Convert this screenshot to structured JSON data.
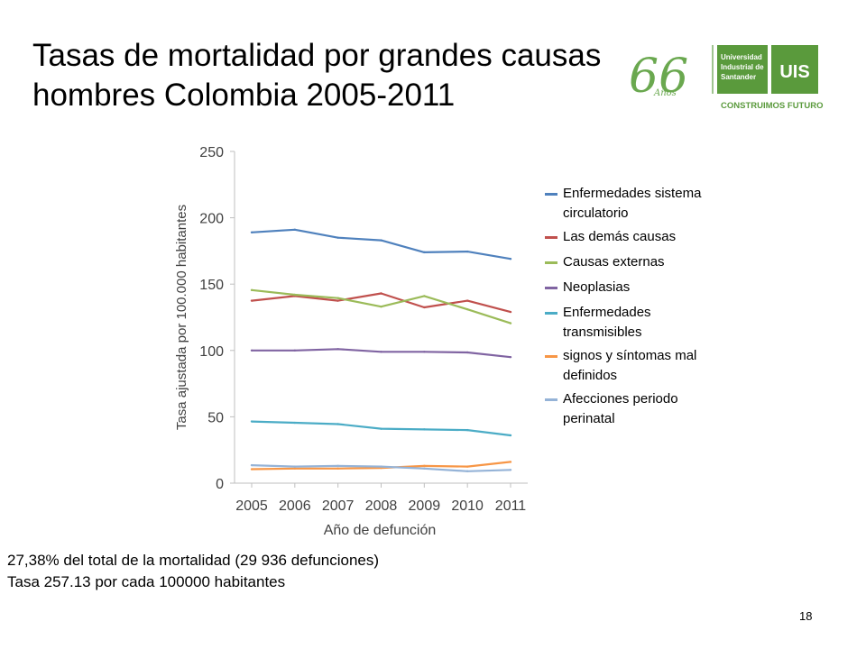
{
  "title": {
    "line1": "Tasas de mortalidad por grandes causas",
    "line2": "hombres Colombia  2005-2011"
  },
  "logo": {
    "anniversary": "66",
    "anniversary_word": "Años",
    "university_line1": "Universidad",
    "university_line2": "Industrial de",
    "university_line3": "Santander",
    "initials": "UIS",
    "slogan": "CONSTRUIMOS FUTURO",
    "green": "#5a9a3c"
  },
  "notes": {
    "line1": "27,38% del total de la mortalidad (29 936 defunciones)",
    "line2": "Tasa 257.13 por cada 100000 habitantes"
  },
  "page_number": "18",
  "chart_data": {
    "type": "line",
    "title": "",
    "xlabel": "Año de defunción",
    "ylabel": "Tasa ajustada por 100.000 habitantes",
    "x": [
      "2005",
      "2006",
      "2007",
      "2008",
      "2009",
      "2010",
      "2011"
    ],
    "ylim": [
      0,
      250
    ],
    "yticks": [
      "0",
      "50",
      "100",
      "150",
      "200",
      "250"
    ],
    "grid": false,
    "legend_position": "right",
    "series": [
      {
        "name": "Enfermedades sistema circulatorio",
        "legend_line1": "Enfermedades sistema",
        "legend_line2": "circulatorio",
        "color": "#4f81bd",
        "values": [
          189,
          191,
          185,
          183,
          174,
          174.5,
          169
        ]
      },
      {
        "name": "Las demás causas",
        "legend_line1": "Las demás causas",
        "legend_line2": "",
        "color": "#c0504d",
        "values": [
          137.5,
          141,
          137.5,
          143,
          132.5,
          137.5,
          129
        ]
      },
      {
        "name": "Causas externas",
        "legend_line1": "Causas externas",
        "legend_line2": "",
        "color": "#9bbb59",
        "values": [
          145.5,
          142,
          139.5,
          133,
          141,
          131,
          120.5
        ]
      },
      {
        "name": "Neoplasias",
        "legend_line1": "Neoplasias",
        "legend_line2": "",
        "color": "#8064a2",
        "values": [
          100,
          100,
          101,
          99,
          99,
          98.5,
          95
        ]
      },
      {
        "name": "Enfermedades transmisibles",
        "legend_line1": "Enfermedades",
        "legend_line2": "transmisibles",
        "color": "#4bacc6",
        "values": [
          46.5,
          45.5,
          44.5,
          41,
          40.5,
          40,
          36
        ]
      },
      {
        "name": "signos y síntomas mal definidos",
        "legend_line1": "signos y síntomas mal",
        "legend_line2": "definidos",
        "color": "#f79646",
        "values": [
          10.5,
          11,
          11,
          11.5,
          13,
          12.5,
          16
        ]
      },
      {
        "name": "Afecciones periodo perinatal",
        "legend_line1": "Afecciones periodo",
        "legend_line2": "perinatal",
        "color": "#95b3d7",
        "values": [
          13.5,
          12.5,
          13,
          12.5,
          11,
          9,
          10
        ]
      }
    ]
  }
}
